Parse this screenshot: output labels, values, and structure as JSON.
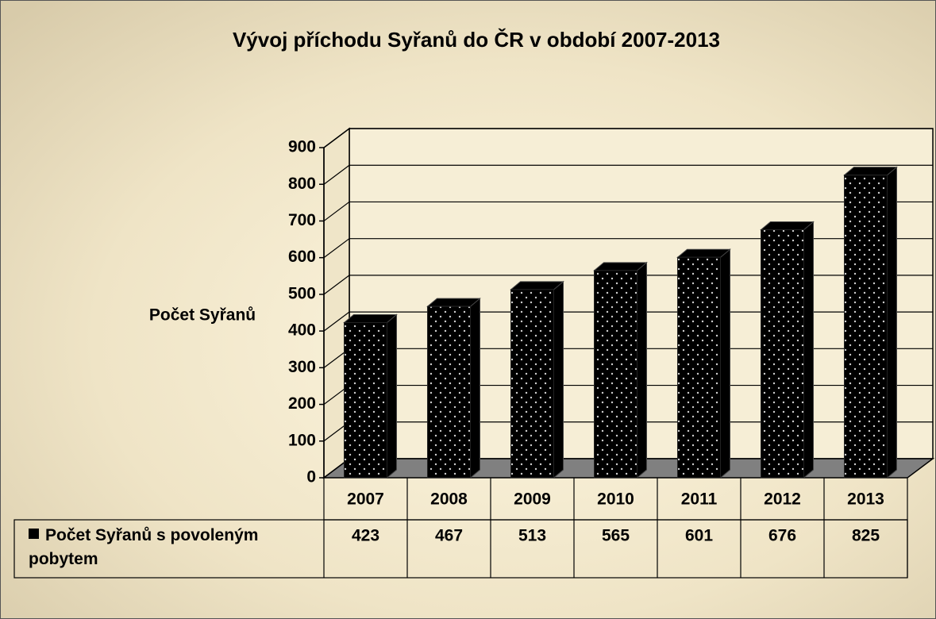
{
  "chart_data": {
    "type": "bar3d",
    "title": "Vývoj příchodu Syřanů do ČR v období 2007-2013",
    "y_label": "Počet Syřanů",
    "categories": [
      "2007",
      "2008",
      "2009",
      "2010",
      "2011",
      "2012",
      "2013"
    ],
    "series": [
      {
        "name": "Počet Syřanů s povoleným pobytem",
        "color": "#000000",
        "values": [
          423,
          467,
          513,
          565,
          601,
          676,
          825
        ]
      }
    ],
    "ylim": [
      0,
      900
    ],
    "yticks": [
      0,
      100,
      200,
      300,
      400,
      500,
      600,
      700,
      800,
      900
    ],
    "grid": true,
    "data_table": true
  }
}
